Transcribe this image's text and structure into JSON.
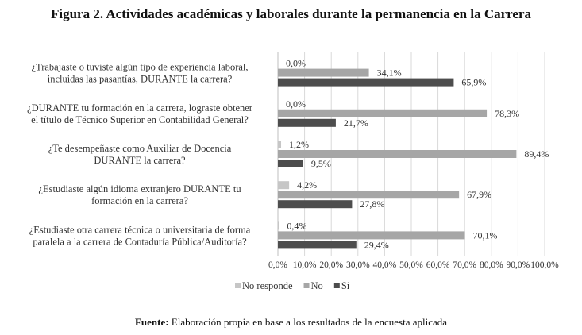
{
  "figure": {
    "title": "Figura 2. Actividades académicas y laborales durante la permanencia en la Carrera",
    "source_label": "Fuente:",
    "source_text": " Elaboración propia en base a los resultados de la encuesta aplicada"
  },
  "chart_data": {
    "type": "bar",
    "orientation": "horizontal",
    "categories": [
      [
        "¿Trabajaste o tuviste algún tipo de experiencia laboral,",
        "incluidas las pasantías, DURANTE la carrera?"
      ],
      [
        "¿DURANTE tu formación en la carrera, lograste obtener",
        "el título de Técnico Superior en Contabilidad General?"
      ],
      [
        "¿Te desempeñaste como Auxiliar de Docencia",
        "DURANTE la carrera?"
      ],
      [
        "¿Estudiaste algún idioma extranjero DURANTE tu",
        "formación en la carrera?"
      ],
      [
        "¿Estudiaste otra carrera técnica o universitaria de forma",
        "paralela a la carrera de Contaduría Pública/Auditoría?"
      ]
    ],
    "series": [
      {
        "name": "No responde",
        "color": "#c6c6c6",
        "values": [
          0.0,
          0.0,
          1.2,
          4.2,
          0.4
        ],
        "labels": [
          "0,0%",
          "0,0%",
          "1,2%",
          "4,2%",
          "0,4%"
        ]
      },
      {
        "name": "No",
        "color": "#a6a6a6",
        "values": [
          34.1,
          78.3,
          89.4,
          67.9,
          70.1
        ],
        "labels": [
          "34,1%",
          "78,3%",
          "89,4%",
          "67,9%",
          "70,1%"
        ]
      },
      {
        "name": "Si",
        "color": "#4d4d4d",
        "values": [
          65.9,
          21.7,
          9.5,
          27.8,
          29.4
        ],
        "labels": [
          "65,9%",
          "21,7%",
          "9,5%",
          "27,8%",
          "29,4%"
        ]
      }
    ],
    "xlim": [
      0,
      100
    ],
    "xticks": [
      "0,0%",
      "10,0%",
      "20,0%",
      "30,0%",
      "40,0%",
      "50,0%",
      "60,0%",
      "70,0%",
      "80,0%",
      "90,0%",
      "100,0%"
    ],
    "grid": true,
    "legend_position": "bottom-left"
  }
}
